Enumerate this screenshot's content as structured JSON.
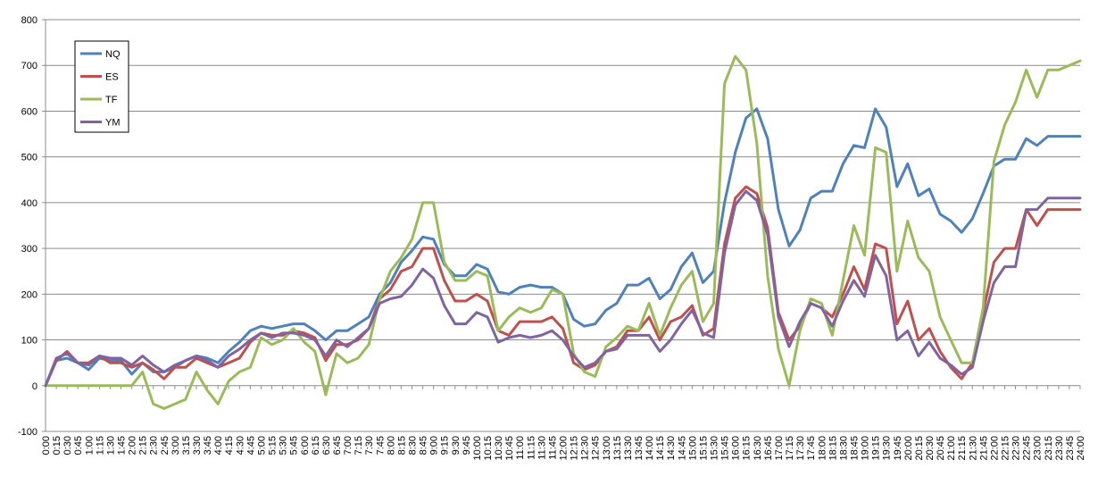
{
  "chart_data": {
    "type": "line",
    "title": "",
    "xlabel": "",
    "ylabel": "",
    "ylim": [
      -100,
      800
    ],
    "yticks": [
      -100,
      0,
      100,
      200,
      300,
      400,
      500,
      600,
      700,
      800
    ],
    "grid": "horizontal",
    "legend": "top-left",
    "x": [
      "0:00",
      "0:15",
      "0:30",
      "0:45",
      "1:00",
      "1:15",
      "1:30",
      "1:45",
      "2:00",
      "2:15",
      "2:30",
      "2:45",
      "3:00",
      "3:15",
      "3:30",
      "3:45",
      "4:00",
      "4:15",
      "4:30",
      "4:45",
      "5:00",
      "5:15",
      "5:30",
      "5:45",
      "6:00",
      "6:15",
      "6:30",
      "6:45",
      "7:00",
      "7:15",
      "7:30",
      "7:45",
      "8:00",
      "8:15",
      "8:30",
      "8:45",
      "9:00",
      "9:15",
      "9:30",
      "9:45",
      "10:00",
      "10:15",
      "10:30",
      "10:45",
      "11:00",
      "11:15",
      "11:30",
      "11:45",
      "12:00",
      "12:15",
      "12:30",
      "12:45",
      "13:00",
      "13:15",
      "13:30",
      "13:45",
      "14:00",
      "14:15",
      "14:30",
      "14:45",
      "15:00",
      "15:15",
      "15:30",
      "15:45",
      "16:00",
      "16:15",
      "16:30",
      "16:45",
      "17:00",
      "17:15",
      "17:30",
      "17:45",
      "18:00",
      "18:15",
      "18:30",
      "18:45",
      "19:00",
      "19:15",
      "19:30",
      "19:45",
      "20:00",
      "20:15",
      "20:30",
      "20:45",
      "21:00",
      "21:15",
      "21:30",
      "21:45",
      "22:00",
      "22:15",
      "22:30",
      "22:45",
      "23:00",
      "23:15",
      "23:30",
      "23:45",
      "24:00"
    ],
    "series": [
      {
        "name": "NQ",
        "color": "#4f81bd",
        "values": [
          0,
          55,
          60,
          50,
          35,
          60,
          55,
          55,
          25,
          50,
          30,
          30,
          40,
          55,
          65,
          60,
          50,
          75,
          95,
          120,
          130,
          125,
          130,
          135,
          135,
          120,
          100,
          120,
          120,
          135,
          150,
          200,
          225,
          270,
          295,
          325,
          320,
          265,
          240,
          240,
          265,
          255,
          205,
          200,
          215,
          220,
          215,
          215,
          200,
          145,
          130,
          135,
          165,
          180,
          220,
          220,
          235,
          190,
          210,
          260,
          290,
          225,
          250,
          400,
          510,
          585,
          605,
          540,
          385,
          305,
          340,
          410,
          425,
          425,
          485,
          525,
          520,
          605,
          565,
          435,
          485,
          415,
          430,
          375,
          360,
          335,
          365,
          420,
          480,
          495,
          495,
          540,
          525,
          545,
          545,
          545,
          545
        ]
      },
      {
        "name": "ES",
        "color": "#c0504d",
        "values": [
          0,
          55,
          75,
          50,
          50,
          65,
          50,
          50,
          40,
          50,
          35,
          15,
          40,
          40,
          60,
          50,
          40,
          50,
          60,
          95,
          115,
          110,
          110,
          120,
          115,
          105,
          55,
          90,
          90,
          100,
          125,
          190,
          210,
          250,
          260,
          300,
          300,
          230,
          185,
          185,
          200,
          185,
          120,
          110,
          140,
          140,
          140,
          150,
          125,
          50,
          35,
          45,
          75,
          85,
          120,
          120,
          150,
          100,
          140,
          150,
          175,
          110,
          125,
          310,
          410,
          435,
          420,
          345,
          160,
          100,
          130,
          180,
          170,
          150,
          200,
          260,
          210,
          310,
          300,
          135,
          185,
          100,
          125,
          75,
          40,
          15,
          50,
          160,
          270,
          300,
          300,
          385,
          350,
          385,
          385,
          385,
          385
        ]
      },
      {
        "name": "TF",
        "color": "#9bbb59",
        "values": [
          0,
          0,
          0,
          0,
          0,
          0,
          0,
          0,
          0,
          30,
          -40,
          -50,
          -40,
          -30,
          30,
          -10,
          -40,
          10,
          30,
          40,
          105,
          90,
          100,
          125,
          95,
          75,
          -20,
          70,
          50,
          60,
          90,
          190,
          250,
          280,
          320,
          400,
          400,
          270,
          230,
          230,
          250,
          240,
          120,
          150,
          170,
          160,
          170,
          210,
          200,
          70,
          30,
          20,
          85,
          105,
          130,
          120,
          180,
          110,
          170,
          220,
          250,
          140,
          180,
          660,
          720,
          690,
          530,
          240,
          80,
          0,
          120,
          190,
          180,
          110,
          230,
          350,
          285,
          520,
          510,
          250,
          360,
          280,
          250,
          150,
          100,
          50,
          50,
          170,
          490,
          570,
          620,
          690,
          630,
          690,
          690,
          700,
          710
        ]
      },
      {
        "name": "YM",
        "color": "#8064a2",
        "values": [
          0,
          60,
          70,
          50,
          45,
          65,
          60,
          60,
          45,
          65,
          45,
          30,
          45,
          55,
          65,
          55,
          40,
          65,
          80,
          100,
          115,
          105,
          115,
          115,
          110,
          100,
          65,
          100,
          85,
          105,
          125,
          180,
          190,
          195,
          220,
          255,
          235,
          175,
          135,
          135,
          160,
          150,
          95,
          105,
          110,
          105,
          110,
          120,
          100,
          65,
          40,
          50,
          75,
          80,
          110,
          110,
          110,
          75,
          100,
          135,
          165,
          115,
          105,
          290,
          395,
          425,
          405,
          330,
          150,
          85,
          140,
          180,
          170,
          130,
          185,
          230,
          195,
          285,
          240,
          100,
          120,
          65,
          95,
          60,
          45,
          25,
          40,
          140,
          225,
          260,
          260,
          385,
          385,
          410,
          410,
          410,
          410
        ]
      }
    ]
  }
}
